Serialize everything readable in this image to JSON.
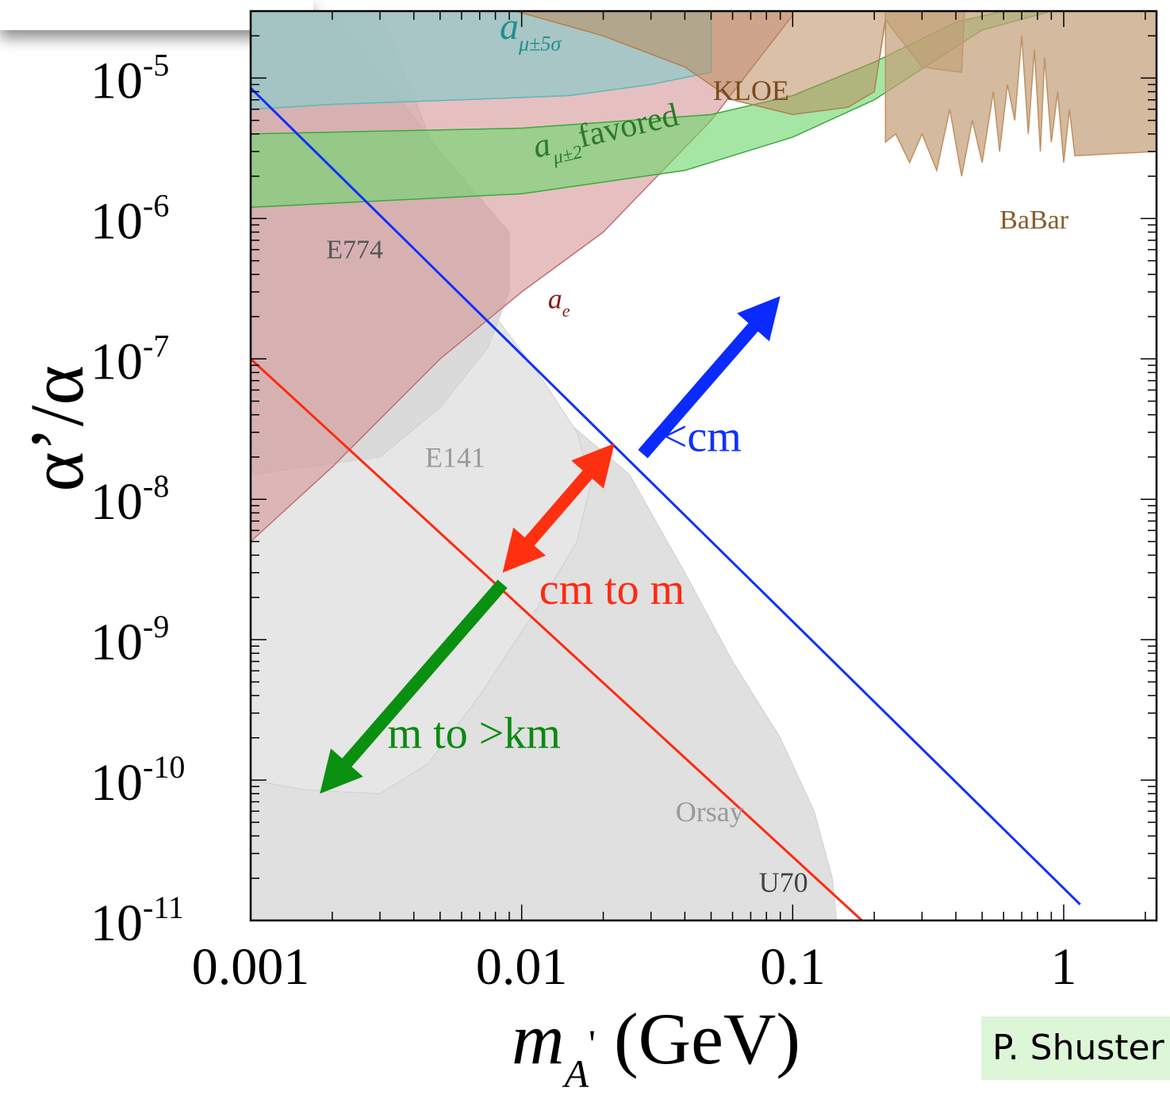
{
  "chart_data": {
    "type": "area",
    "xscale": "log",
    "yscale": "log",
    "xlim": [
      0.001,
      2.2
    ],
    "ylim": [
      1e-11,
      3e-05
    ],
    "x_ticks": [
      {
        "value": 0.001,
        "label": "0.001"
      },
      {
        "value": 0.01,
        "label": "0.01"
      },
      {
        "value": 0.1,
        "label": "0.1"
      },
      {
        "value": 1,
        "label": "1"
      }
    ],
    "y_ticks": [
      {
        "value": 1e-11,
        "base": "10",
        "exp": "-11"
      },
      {
        "value": 1e-10,
        "base": "10",
        "exp": "-10"
      },
      {
        "value": 1e-09,
        "base": "10",
        "exp": "-9"
      },
      {
        "value": 1e-08,
        "base": "10",
        "exp": "-8"
      },
      {
        "value": 1e-07,
        "base": "10",
        "exp": "-7"
      },
      {
        "value": 1e-06,
        "base": "10",
        "exp": "-6"
      },
      {
        "value": 1e-05,
        "base": "10",
        "exp": "-5"
      }
    ],
    "xlabel": {
      "main": "m",
      "sub": "A",
      "prime": "'",
      "unit": " (GeV)"
    },
    "ylabel": "α’/α",
    "regions": [
      {
        "name": "Orsay/U70",
        "color": "#e0e0e0",
        "points": [
          [
            0.001,
            1e-11
          ],
          [
            0.001,
            3e-05
          ],
          [
            0.0024,
            3e-05
          ],
          [
            0.004,
            1.5e-06
          ],
          [
            0.006,
            3e-07
          ],
          [
            0.008,
            1.2e-07
          ],
          [
            0.012,
            5e-08
          ],
          [
            0.025,
            1.5e-08
          ],
          [
            0.04,
            3e-09
          ],
          [
            0.06,
            7e-10
          ],
          [
            0.09,
            2e-10
          ],
          [
            0.12,
            6e-11
          ],
          [
            0.14,
            2e-11
          ],
          [
            0.145,
            1e-11
          ]
        ]
      },
      {
        "name": "E141",
        "color": "#e6e6e6",
        "points": [
          [
            0.003,
            3e-05
          ],
          [
            0.006,
            1e-06
          ],
          [
            0.008,
            2e-07
          ],
          [
            0.012,
            7e-08
          ],
          [
            0.016,
            3e-08
          ],
          [
            0.018,
            1.3e-08
          ],
          [
            0.016,
            5e-09
          ],
          [
            0.011,
            1.5e-09
          ],
          [
            0.007,
            4e-10
          ],
          [
            0.0045,
            1.3e-10
          ],
          [
            0.003,
            8e-11
          ],
          [
            0.0016,
            8.5e-11
          ],
          [
            0.001,
            1e-10
          ],
          [
            0.001,
            3e-05
          ]
        ]
      },
      {
        "name": "E774",
        "color": "#dadada",
        "points": [
          [
            0.001,
            3e-05
          ],
          [
            0.002,
            3e-05
          ],
          [
            0.005,
            3e-06
          ],
          [
            0.009,
            8e-07
          ],
          [
            0.009,
            3e-07
          ],
          [
            0.0075,
            1.2e-07
          ],
          [
            0.005,
            4.5e-08
          ],
          [
            0.003,
            2e-08
          ],
          [
            0.001,
            1.5e-08
          ]
        ]
      },
      {
        "name": "ae",
        "color": "rgba(214,150,152,0.6)",
        "stroke": "#c07070",
        "points": [
          [
            0.001,
            5e-09
          ],
          [
            0.002,
            1.7e-08
          ],
          [
            0.005,
            1e-07
          ],
          [
            0.01,
            3e-07
          ],
          [
            0.02,
            8e-07
          ],
          [
            0.05,
            5e-06
          ],
          [
            0.1,
            2.8e-05
          ],
          [
            0.1,
            3e-05
          ],
          [
            0.001,
            3e-05
          ]
        ]
      },
      {
        "name": "amu5sigma",
        "color": "rgba(150,200,200,0.78)",
        "stroke": "#5ab8b8",
        "points": [
          [
            0.001,
            3e-05
          ],
          [
            0.05,
            3e-05
          ],
          [
            0.05,
            1.1e-05
          ],
          [
            0.03,
            9e-06
          ],
          [
            0.015,
            7.5e-06
          ],
          [
            0.006,
            7e-06
          ],
          [
            0.002,
            6.5e-06
          ],
          [
            0.001,
            6e-06
          ]
        ]
      },
      {
        "name": "amu2favored",
        "color": "rgba(110,215,110,0.62)",
        "stroke": "#3da83d",
        "points": [
          [
            0.001,
            4e-06
          ],
          [
            0.01,
            4.4e-06
          ],
          [
            0.05,
            5.5e-06
          ],
          [
            0.1,
            7.5e-06
          ],
          [
            0.2,
            1.3e-05
          ],
          [
            0.4,
            2.5e-05
          ],
          [
            0.6,
            3e-05
          ],
          [
            0.9,
            3e-05
          ],
          [
            0.5,
            2.2e-05
          ],
          [
            0.2,
            7e-06
          ],
          [
            0.1,
            3.8e-06
          ],
          [
            0.04,
            2.2e-06
          ],
          [
            0.01,
            1.5e-06
          ],
          [
            0.001,
            1.2e-06
          ]
        ]
      },
      {
        "name": "KLOE",
        "color": "rgba(185,140,95,0.55)",
        "stroke": "#b08050",
        "points": [
          [
            0.0095,
            3e-05
          ],
          [
            0.02,
            2e-05
          ],
          [
            0.04,
            1.2e-05
          ],
          [
            0.06,
            7e-06
          ],
          [
            0.1,
            5.5e-06
          ],
          [
            0.16,
            6.2e-06
          ],
          [
            0.2,
            8e-06
          ],
          [
            0.22,
            2.6e-05
          ],
          [
            0.3,
            1.2e-05
          ],
          [
            0.42,
            1.1e-05
          ],
          [
            0.43,
            3e-05
          ]
        ]
      },
      {
        "name": "BaBar",
        "color": "rgba(196,160,120,0.72)",
        "stroke": "#c09060",
        "points": [
          [
            0.22,
            3e-05
          ],
          [
            2.2,
            3e-05
          ],
          [
            2.2,
            3e-06
          ],
          [
            1.1,
            2.8e-06
          ],
          [
            1.05,
            6e-06
          ],
          [
            1.0,
            2.5e-06
          ],
          [
            0.95,
            8e-06
          ],
          [
            0.9,
            3.5e-06
          ],
          [
            0.85,
            1.4e-05
          ],
          [
            0.82,
            3e-06
          ],
          [
            0.78,
            1.6e-05
          ],
          [
            0.74,
            4e-06
          ],
          [
            0.7,
            2e-05
          ],
          [
            0.66,
            5e-06
          ],
          [
            0.62,
            9e-06
          ],
          [
            0.58,
            3e-06
          ],
          [
            0.55,
            8e-06
          ],
          [
            0.5,
            2.5e-06
          ],
          [
            0.46,
            5e-06
          ],
          [
            0.42,
            2e-06
          ],
          [
            0.38,
            6e-06
          ],
          [
            0.34,
            2.2e-06
          ],
          [
            0.3,
            4e-06
          ],
          [
            0.27,
            2.5e-06
          ],
          [
            0.24,
            4e-06
          ],
          [
            0.22,
            3.5e-06
          ]
        ]
      }
    ],
    "lines": [
      {
        "name": "blue-decay-length-line",
        "color": "#1030ff",
        "points": [
          [
            0.001,
            8.5e-06
          ],
          [
            1.15,
            1.3e-11
          ]
        ]
      },
      {
        "name": "red-decay-length-line",
        "color": "#ff2a10",
        "points": [
          [
            0.001,
            1e-07
          ],
          [
            0.18,
            1e-11
          ]
        ]
      }
    ],
    "arrows": [
      {
        "name": "lt-cm-arrow",
        "color": "#0a2aff",
        "double": false,
        "from": [
          0.028,
          2.1e-08
        ],
        "to": [
          0.09,
          2.8e-07
        ]
      },
      {
        "name": "cm-to-m-arrow",
        "color": "#ff3010",
        "double": true,
        "from": [
          0.0085,
          3e-09
        ],
        "to": [
          0.022,
          2.5e-08
        ]
      },
      {
        "name": "m-to-km-arrow",
        "color": "#0a9010",
        "double": false,
        "from": [
          0.0085,
          2.5e-09
        ],
        "to": [
          0.0018,
          8e-11
        ]
      }
    ],
    "annotations": [
      {
        "name": "amu5sigma-label",
        "main": "a",
        "sub": "μ±5σ",
        "x": 0.0083,
        "y": 1.9e-05,
        "color": "#1f8f8f",
        "size": 48,
        "sub_size": 26,
        "rotate": 0
      },
      {
        "name": "amu2-favored-label",
        "main": "a",
        "sub": "μ±2",
        "rest": "favored",
        "x": 0.0113,
        "y": 2.7e-06,
        "color": "#2a7a2a",
        "size": 42,
        "sub_size": 24,
        "rotate": -13
      },
      {
        "name": "kloe-label",
        "main": "KLOE",
        "x": 0.0508,
        "y": 7e-06,
        "color": "#7a4a20",
        "size": 36,
        "rotate": 0
      },
      {
        "name": "babar-label",
        "main": "BaBar",
        "x": 0.58,
        "y": 8.5e-07,
        "color": "#8a5a2a",
        "size": 34,
        "rotate": 0
      },
      {
        "name": "e774-label",
        "main": "E774",
        "x": 0.0019,
        "y": 5.2e-07,
        "color": "#555555",
        "size": 34,
        "rotate": 0
      },
      {
        "name": "ae-label",
        "main": "a",
        "sub": "e",
        "x": 0.0125,
        "y": 2.3e-07,
        "color": "#8a1a1a",
        "size": 36,
        "sub_size": 22,
        "rotate": 0
      },
      {
        "name": "e141-label",
        "main": "E141",
        "x": 0.0044,
        "y": 1.7e-08,
        "color": "#999999",
        "size": 36,
        "rotate": 0
      },
      {
        "name": "orsay-label",
        "main": "Orsay",
        "x": 0.037,
        "y": 5.1e-11,
        "color": "#999999",
        "size": 36,
        "rotate": 0
      },
      {
        "name": "u70-label",
        "main": "U70",
        "x": 0.075,
        "y": 1.6e-11,
        "color": "#444444",
        "size": 36,
        "rotate": 0
      },
      {
        "name": "lt-cm-label",
        "main": "<cm",
        "x": 0.033,
        "y": 2.2e-08,
        "color": "#1030ff",
        "size": 56,
        "rotate": 0
      },
      {
        "name": "cm-to-m-label",
        "main": "cm to m",
        "x": 0.0116,
        "y": 1.8e-09,
        "color": "#ff2a10",
        "size": 56,
        "rotate": 0
      },
      {
        "name": "m-to-km-label",
        "main": "m to >km",
        "x": 0.0032,
        "y": 1.7e-10,
        "color": "#0a8a10",
        "size": 56,
        "rotate": 0
      }
    ]
  },
  "credit": "P. Shuster"
}
